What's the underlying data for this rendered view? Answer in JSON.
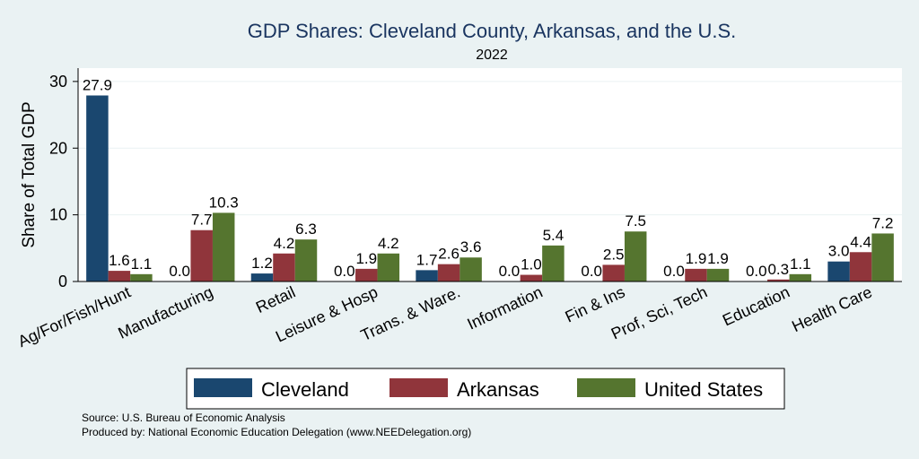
{
  "chart_data": {
    "type": "bar",
    "title": "GDP Shares: Cleveland County, Arkansas, and the U.S.",
    "subtitle": "2022",
    "xlabel": "",
    "ylabel": "Share of Total GDP",
    "ylim": [
      0,
      32
    ],
    "yticks": [
      "0",
      "10",
      "20",
      "30"
    ],
    "categories": [
      "Ag/For/Fish/Hunt",
      "Manufacturing",
      "Retail",
      "Leisure & Hosp",
      "Trans. & Ware.",
      "Information",
      "Fin & Ins",
      "Prof, Sci, Tech",
      "Education",
      "Health Care"
    ],
    "series": [
      {
        "name": "Cleveland",
        "color": "#1a476f",
        "values": [
          27.9,
          0.0,
          1.2,
          0.0,
          1.7,
          0.0,
          0.0,
          0.0,
          0.0,
          3.0
        ],
        "labels": [
          "27.9",
          "0.0",
          "1.2",
          "0.0",
          "1.7",
          "0.0",
          "0.0",
          "0.0",
          "0.0",
          "3.0"
        ]
      },
      {
        "name": "Arkansas",
        "color": "#90353b",
        "values": [
          1.6,
          7.7,
          4.2,
          1.9,
          2.6,
          1.0,
          2.5,
          1.9,
          0.3,
          4.4
        ],
        "labels": [
          "1.6",
          "7.7",
          "4.2",
          "1.9",
          "2.6",
          "1.0",
          "2.5",
          "1.9",
          "0.3",
          "4.4"
        ]
      },
      {
        "name": "United States",
        "color": "#55752f",
        "values": [
          1.1,
          10.3,
          6.3,
          4.2,
          3.6,
          5.4,
          7.5,
          1.9,
          1.1,
          7.2
        ],
        "labels": [
          "1.1",
          "10.3",
          "6.3",
          "4.2",
          "3.6",
          "5.4",
          "7.5",
          "1.9",
          "1.1",
          "7.2"
        ]
      }
    ],
    "grid": true,
    "legend_position": "bottom"
  },
  "notes": {
    "source": "Source: U.S. Bureau of Economic Analysis",
    "produced_by": "Produced by: National Economic Education Delegation (www.NEEDelegation.org)"
  }
}
